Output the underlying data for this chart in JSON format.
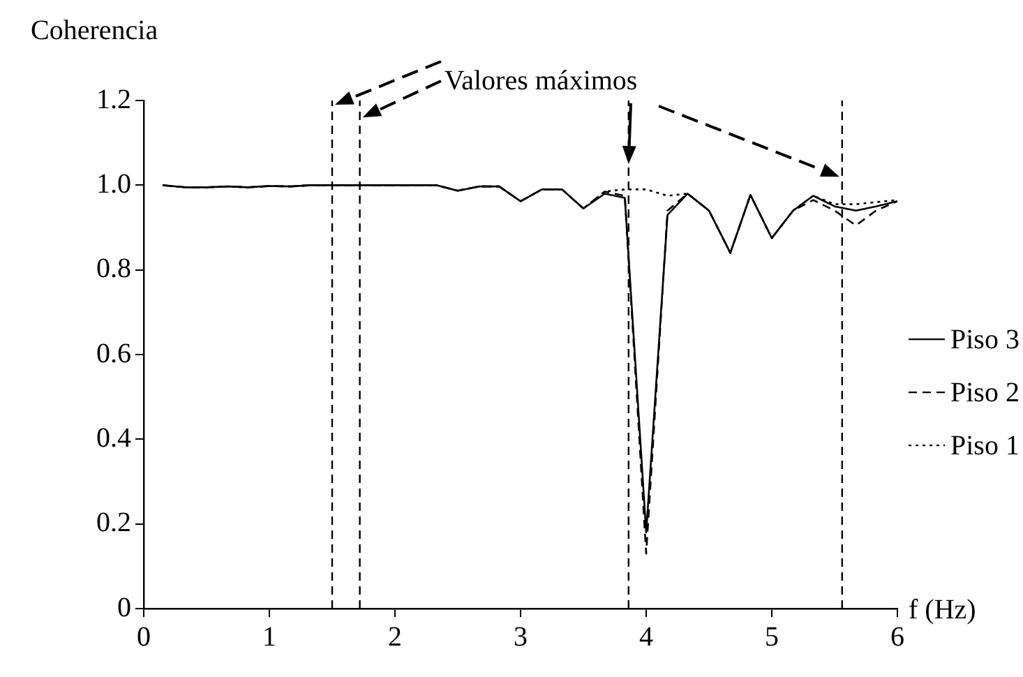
{
  "chart_data": {
    "type": "line",
    "ylabel": "Coherencia",
    "xlabel": "f (Hz)",
    "annotations": [
      {
        "text": "Valores máximos",
        "x": 3.86,
        "y": 1.05
      }
    ],
    "x": [
      0.15,
      0.33,
      0.5,
      0.67,
      0.83,
      1.0,
      1.17,
      1.33,
      1.5,
      1.67,
      1.83,
      2.0,
      2.17,
      2.33,
      2.5,
      2.67,
      2.83,
      3.0,
      3.17,
      3.33,
      3.5,
      3.67,
      3.83,
      4.0,
      4.17,
      4.33,
      4.5,
      4.67,
      4.83,
      5.0,
      5.17,
      5.33,
      5.5,
      5.67,
      5.83,
      6.0
    ],
    "series": [
      {
        "name": "Piso 3",
        "color": "#000000",
        "line_style": "solid",
        "values": [
          1.0,
          0.995,
          0.995,
          0.997,
          0.995,
          0.998,
          0.997,
          1.0,
          1.0,
          1.0,
          1.0,
          1.0,
          1.0,
          1.0,
          0.987,
          0.997,
          0.997,
          0.962,
          0.99,
          0.99,
          0.945,
          0.98,
          0.97,
          0.18,
          0.93,
          0.98,
          0.94,
          0.84,
          0.977,
          0.875,
          0.94,
          0.975,
          0.95,
          0.94,
          0.95,
          0.962
        ]
      },
      {
        "name": "Piso 2",
        "color": "#000000",
        "line_style": "dashed",
        "values": [
          1.0,
          0.995,
          0.995,
          0.997,
          0.995,
          0.998,
          0.997,
          1.0,
          1.0,
          1.0,
          1.0,
          1.0,
          1.0,
          1.0,
          0.987,
          0.997,
          0.997,
          0.962,
          0.99,
          0.99,
          0.945,
          0.985,
          0.975,
          0.13,
          0.94,
          0.98,
          0.94,
          0.84,
          0.977,
          0.875,
          0.94,
          0.965,
          0.94,
          0.905,
          0.94,
          0.962
        ]
      },
      {
        "name": "Piso 1",
        "color": "#000000",
        "line_style": "dotted",
        "values": [
          1.0,
          0.995,
          0.995,
          0.997,
          0.995,
          0.998,
          0.997,
          1.0,
          1.0,
          1.0,
          1.0,
          1.0,
          1.0,
          1.0,
          0.987,
          0.997,
          0.997,
          0.962,
          0.99,
          0.99,
          0.945,
          0.985,
          0.99,
          0.99,
          0.975,
          0.98,
          0.94,
          0.84,
          0.977,
          0.875,
          0.94,
          0.975,
          0.955,
          0.955,
          0.96,
          0.965
        ]
      }
    ],
    "xlim": [
      0,
      6
    ],
    "xticks": [
      0,
      1,
      2,
      3,
      4,
      5,
      6
    ],
    "ylim": [
      0,
      1.2
    ],
    "yticks": [
      0,
      0.2,
      0.4,
      0.6,
      0.8,
      {
        "value": 1,
        "label": "1.0"
      },
      1.2
    ],
    "ref_lines": [
      {
        "axis": "x",
        "value": 1.5,
        "color": "#000000",
        "line_style": "dashed"
      },
      {
        "axis": "x",
        "value": 1.72,
        "color": "#000000",
        "line_style": "dashed"
      },
      {
        "axis": "x",
        "value": 3.86,
        "color": "#000000",
        "line_style": "dashed"
      },
      {
        "axis": "x",
        "value": 5.56,
        "color": "#000000",
        "line_style": "dashed"
      }
    ],
    "grid": false,
    "legend": "right",
    "marker": "none"
  }
}
